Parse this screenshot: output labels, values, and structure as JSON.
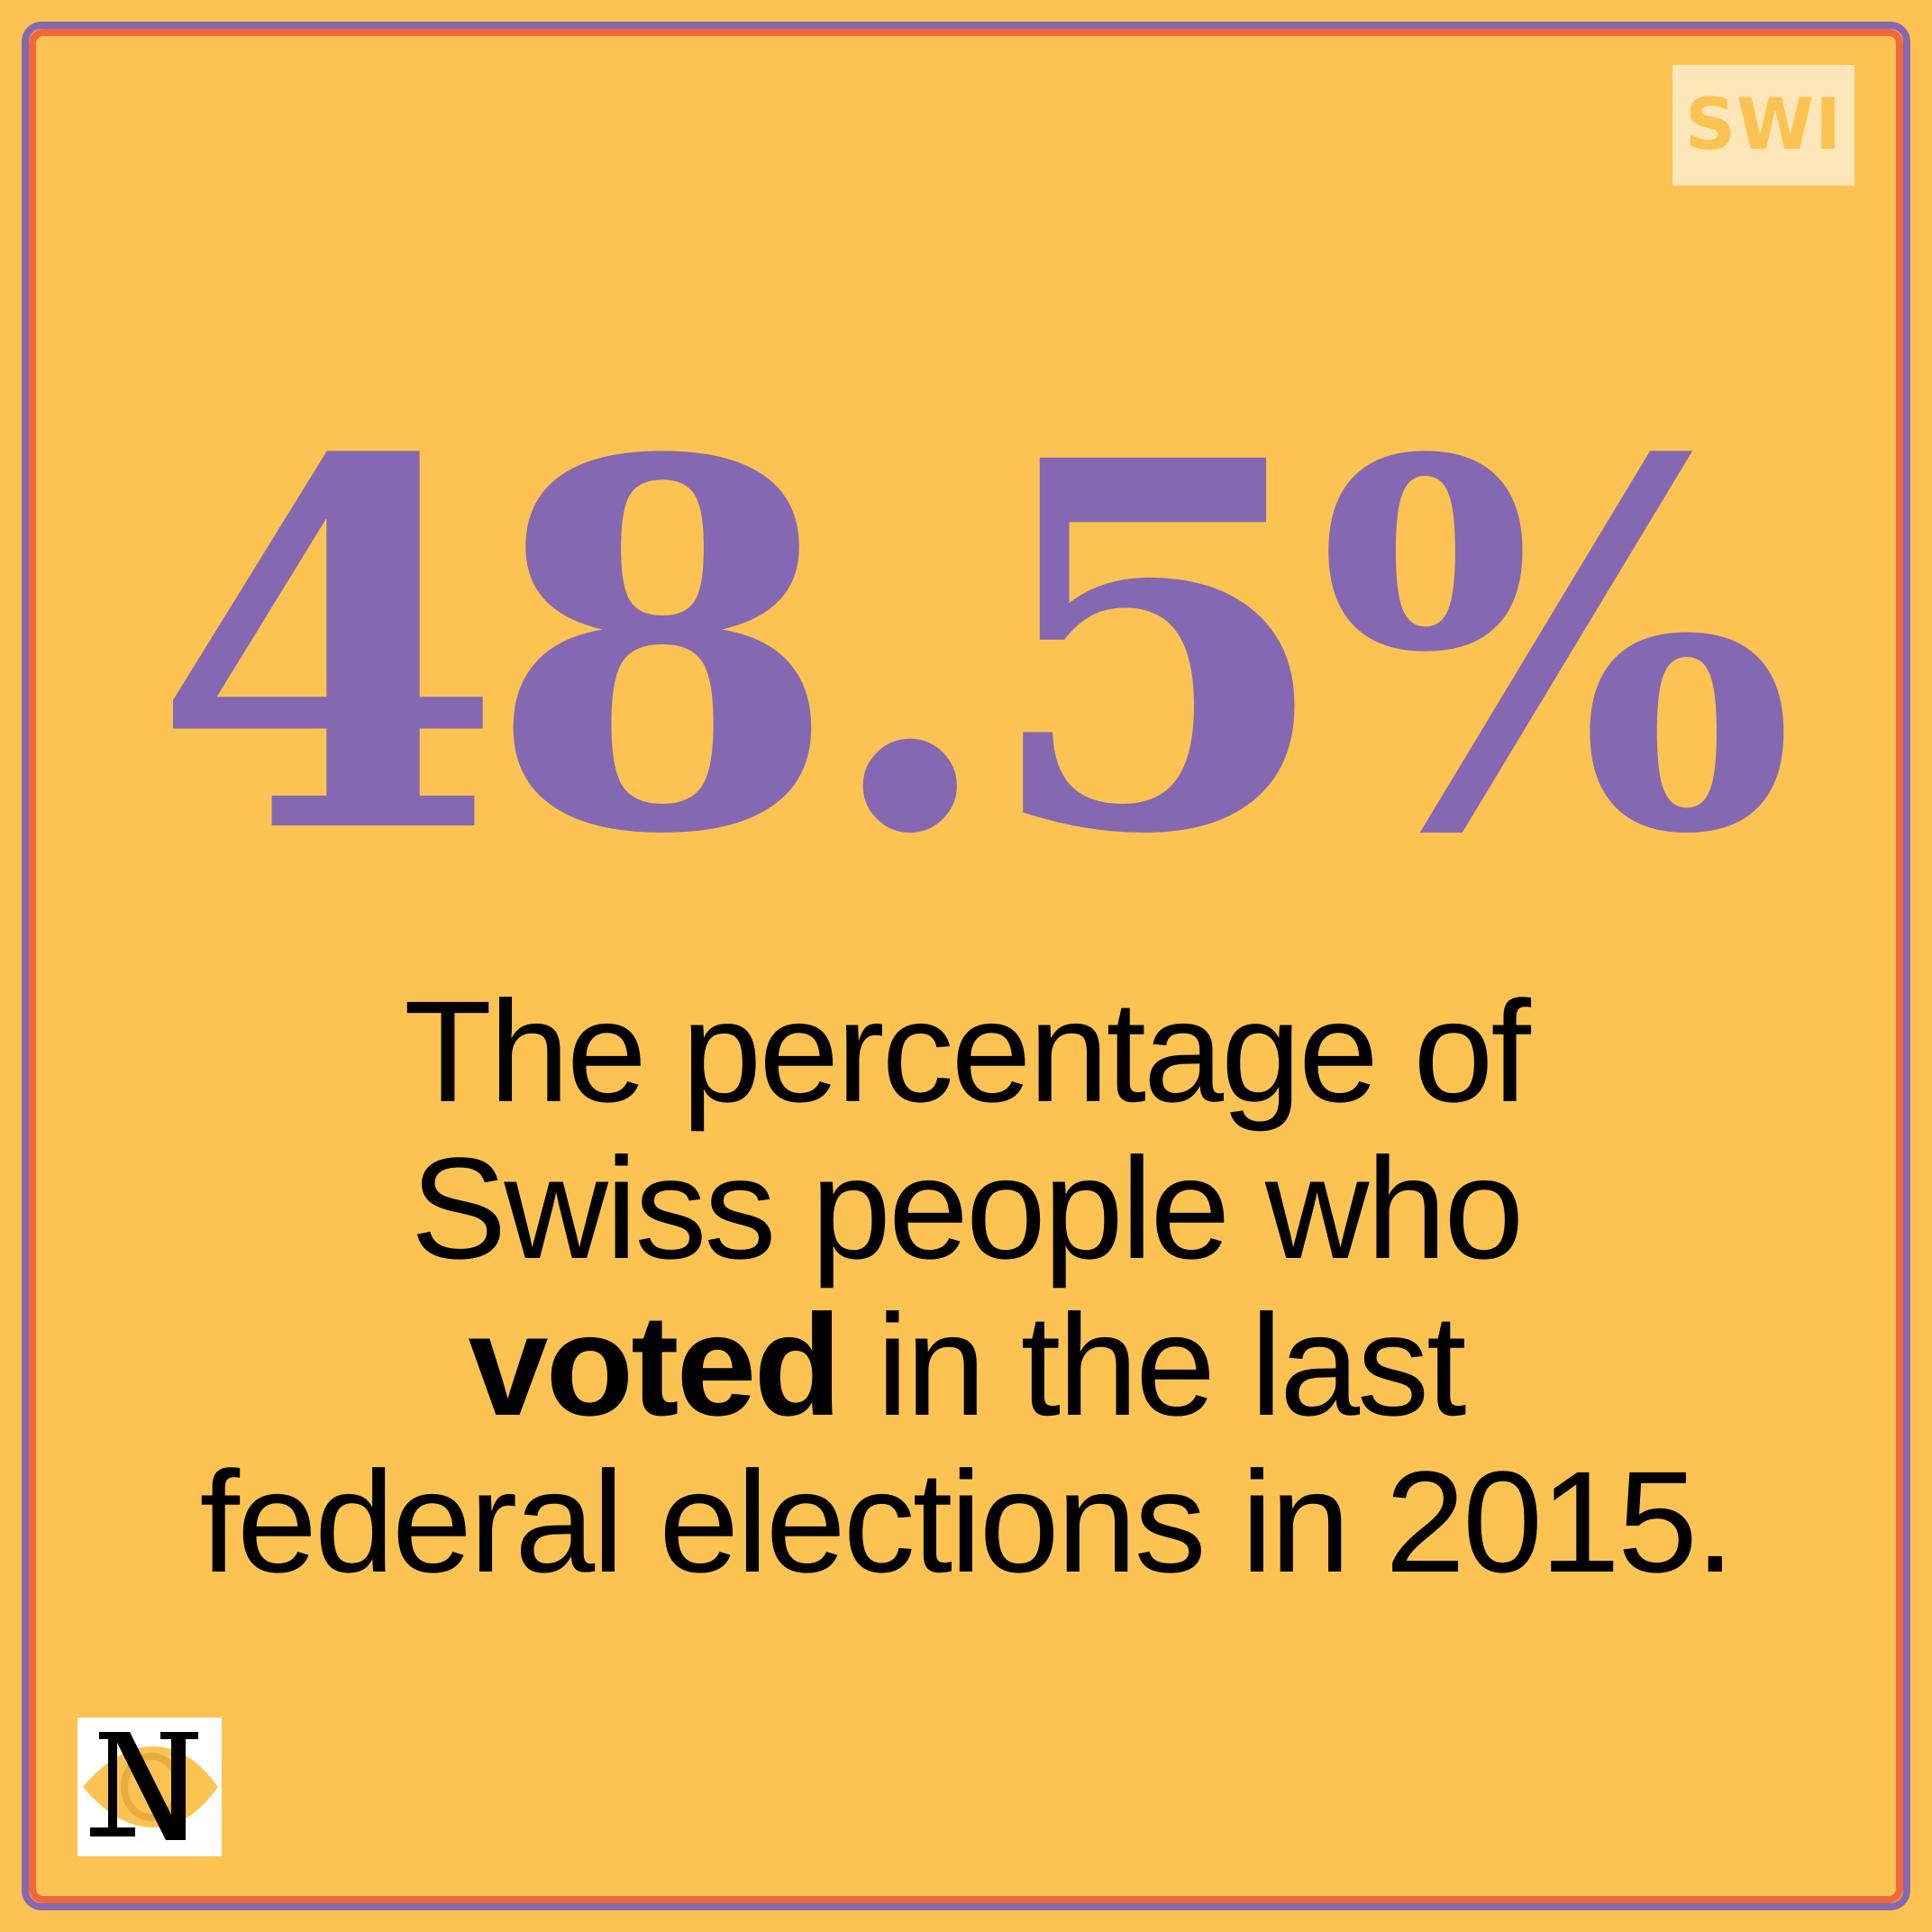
{
  "brand": {
    "logo_text": "SWI",
    "secondary_logo_icon": "n-monogram-eye-logo"
  },
  "stat": {
    "value": "48.5%",
    "lines": {
      "line1": "The percentage of",
      "line2": "Swiss people who",
      "line3_bold": "voted",
      "line3_rest": " in the last",
      "line4": "federal elections in 2015."
    }
  },
  "colors": {
    "background": "#fcc352",
    "accent_purple": "#8468b1",
    "accent_orange": "#f2673a",
    "text": "#000000"
  }
}
